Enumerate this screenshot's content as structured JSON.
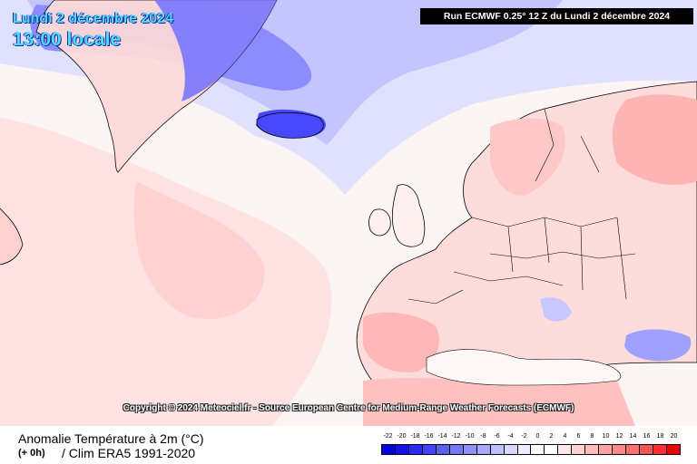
{
  "map": {
    "date_title": "Lundi 2 décembre 2024",
    "time_title": "13:00 locale",
    "run_info": "Run ECMWF 0.25° 12 Z du Lundi 2 décembre 2024",
    "copyright": "Copyright © 2024 Meteociel.fr - Source European Centre for Medium-Range Weather Forecasts (ECMWF)"
  },
  "footer": {
    "variable": "Anomalie Température à 2m (°C)",
    "step": "(+ 0h)",
    "climatology": "/ Clim ERA5 1991-2020"
  },
  "legend": {
    "labels": [
      "-22",
      "-20",
      "-18",
      "-16",
      "-14",
      "-12",
      "-10",
      "-8",
      "-6",
      "-4",
      "-2",
      "0",
      "2",
      "4",
      "6",
      "8",
      "10",
      "12",
      "14",
      "16",
      "18",
      "20"
    ],
    "colors": [
      "#0000e0",
      "#1010f0",
      "#2a2aff",
      "#4444ff",
      "#5e5eff",
      "#7878ff",
      "#9090ff",
      "#a8a8ff",
      "#c0c0ff",
      "#d6d6ff",
      "#ececff",
      "#ffffff",
      "#ffffff",
      "#ffe8e8",
      "#ffd2d2",
      "#ffbcbc",
      "#ffa4a4",
      "#ff8c8c",
      "#ff7070",
      "#ff5252",
      "#ff3030",
      "#f00000"
    ]
  }
}
